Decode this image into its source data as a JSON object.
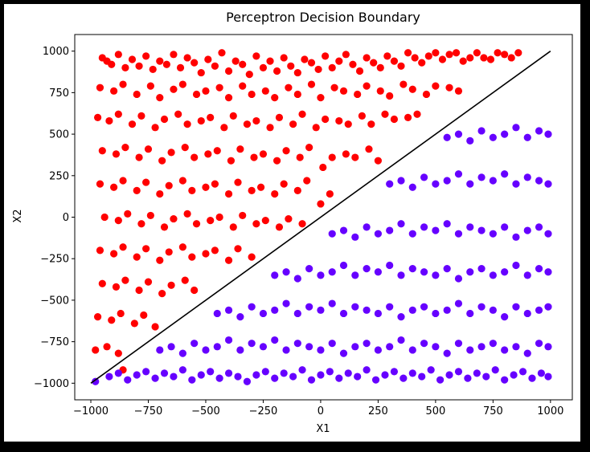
{
  "chart_data": {
    "type": "scatter",
    "title": "Perceptron Decision Boundary",
    "xlabel": "X1",
    "ylabel": "X2",
    "xlim": [
      -1070,
      1095
    ],
    "ylim": [
      -1100,
      1100
    ],
    "xticks": [
      -1000,
      -750,
      -500,
      -250,
      0,
      250,
      500,
      750,
      1000
    ],
    "yticks": [
      -1000,
      -750,
      -500,
      -250,
      0,
      250,
      500,
      750,
      1000
    ],
    "grid": false,
    "legend": "none",
    "colors": {
      "class_above": "#ff0000",
      "class_below": "#6600ff",
      "boundary": "#000000"
    },
    "boundary_line": {
      "x": [
        -1000,
        1000
      ],
      "y": [
        -1000,
        1000
      ]
    },
    "series": [
      {
        "x": [
          -950,
          -930,
          -910,
          -880,
          -850,
          -820,
          -790,
          -760,
          -730,
          -700,
          -670,
          -640,
          -610,
          -580,
          -550,
          -520,
          -490,
          -460,
          -430,
          -400,
          -370,
          -340,
          -310,
          -280,
          -250,
          -220,
          -190,
          -160,
          -130,
          -100,
          -70,
          -40,
          -10,
          20,
          50,
          80,
          110,
          140,
          170,
          200,
          230,
          260,
          290,
          320,
          350,
          380,
          410,
          440,
          470,
          500,
          530,
          560,
          590,
          620,
          650,
          680,
          710,
          740,
          770,
          800,
          830,
          860,
          -960,
          -900,
          -860,
          -800,
          -740,
          -700,
          -640,
          -600,
          -540,
          -500,
          -440,
          -400,
          -340,
          -300,
          -240,
          -200,
          -140,
          -100,
          -40,
          0,
          60,
          100,
          160,
          200,
          260,
          300,
          360,
          400,
          460,
          500,
          560,
          600,
          -970,
          -920,
          -880,
          -820,
          -780,
          -720,
          -680,
          -620,
          -580,
          -520,
          -480,
          -420,
          -380,
          -320,
          -280,
          -220,
          -180,
          -120,
          -80,
          -20,
          20,
          80,
          120,
          180,
          220,
          280,
          320,
          380,
          420,
          -950,
          -890,
          -850,
          -790,
          -750,
          -690,
          -650,
          -590,
          -550,
          -490,
          -450,
          -390,
          -350,
          -290,
          -250,
          -190,
          -150,
          -90,
          -50,
          10,
          50,
          110,
          150,
          210,
          250,
          -960,
          -900,
          -860,
          -800,
          -760,
          -700,
          -660,
          -600,
          -560,
          -500,
          -460,
          -400,
          -360,
          -300,
          -260,
          -200,
          -160,
          -100,
          -60,
          0,
          40,
          -940,
          -880,
          -840,
          -780,
          -740,
          -680,
          -640,
          -580,
          -540,
          -480,
          -440,
          -380,
          -340,
          -280,
          -240,
          -180,
          -140,
          -80,
          -960,
          -900,
          -860,
          -800,
          -760,
          -700,
          -660,
          -600,
          -560,
          -500,
          -460,
          -400,
          -360,
          -300,
          -950,
          -890,
          -850,
          -790,
          -750,
          -690,
          -650,
          -590,
          -550,
          -970,
          -910,
          -870,
          -810,
          -770,
          -720,
          -980,
          -930,
          -880,
          -860
        ],
        "y": [
          960,
          940,
          920,
          980,
          900,
          950,
          910,
          970,
          890,
          940,
          920,
          980,
          900,
          960,
          930,
          870,
          950,
          910,
          990,
          880,
          940,
          920,
          860,
          970,
          900,
          940,
          880,
          960,
          910,
          870,
          950,
          930,
          890,
          970,
          900,
          940,
          980,
          920,
          880,
          960,
          930,
          900,
          970,
          940,
          910,
          990,
          960,
          930,
          970,
          990,
          950,
          980,
          990,
          940,
          960,
          990,
          960,
          950,
          990,
          980,
          960,
          990,
          780,
          760,
          800,
          740,
          790,
          720,
          770,
          800,
          740,
          760,
          780,
          720,
          790,
          740,
          760,
          720,
          780,
          740,
          800,
          720,
          780,
          760,
          740,
          790,
          760,
          730,
          800,
          770,
          740,
          790,
          780,
          760,
          600,
          580,
          620,
          560,
          610,
          540,
          590,
          620,
          560,
          580,
          600,
          540,
          610,
          560,
          580,
          540,
          600,
          560,
          620,
          540,
          590,
          580,
          560,
          610,
          560,
          620,
          590,
          600,
          620,
          400,
          380,
          420,
          360,
          410,
          340,
          390,
          420,
          360,
          380,
          400,
          340,
          410,
          360,
          380,
          340,
          400,
          360,
          420,
          300,
          360,
          380,
          360,
          410,
          340,
          200,
          180,
          220,
          160,
          210,
          140,
          190,
          220,
          160,
          180,
          200,
          140,
          210,
          160,
          180,
          140,
          200,
          160,
          220,
          80,
          140,
          0,
          -20,
          20,
          -40,
          10,
          -60,
          -10,
          20,
          -40,
          -20,
          0,
          -60,
          10,
          -40,
          -20,
          -60,
          -10,
          -40,
          -200,
          -220,
          -180,
          -240,
          -190,
          -260,
          -210,
          -180,
          -240,
          -220,
          -200,
          -260,
          -190,
          -240,
          -400,
          -420,
          -380,
          -440,
          -390,
          -460,
          -410,
          -380,
          -440,
          -600,
          -620,
          -580,
          -640,
          -590,
          -660,
          -800,
          -780,
          -820,
          -920
        ]
      },
      {
        "x": [
          -980,
          -920,
          -880,
          -840,
          -800,
          -760,
          -720,
          -680,
          -640,
          -600,
          -560,
          -520,
          -480,
          -440,
          -400,
          -360,
          -320,
          -280,
          -240,
          -200,
          -160,
          -120,
          -80,
          -40,
          0,
          40,
          80,
          120,
          160,
          200,
          240,
          280,
          320,
          360,
          400,
          440,
          480,
          520,
          560,
          600,
          640,
          680,
          720,
          760,
          800,
          840,
          880,
          920,
          960,
          990,
          -700,
          -650,
          -600,
          -550,
          -500,
          -450,
          -400,
          -350,
          -300,
          -250,
          -200,
          -150,
          -100,
          -50,
          0,
          50,
          100,
          150,
          200,
          250,
          300,
          350,
          400,
          450,
          500,
          550,
          600,
          650,
          700,
          750,
          800,
          850,
          900,
          950,
          990,
          -450,
          -400,
          -350,
          -300,
          -250,
          -200,
          -150,
          -100,
          -50,
          0,
          50,
          100,
          150,
          200,
          250,
          300,
          350,
          400,
          450,
          500,
          550,
          600,
          650,
          700,
          750,
          800,
          850,
          900,
          950,
          990,
          -200,
          -150,
          -100,
          -50,
          0,
          50,
          100,
          150,
          200,
          250,
          300,
          350,
          400,
          450,
          500,
          550,
          600,
          650,
          700,
          750,
          800,
          850,
          900,
          950,
          990,
          50,
          100,
          150,
          200,
          250,
          300,
          350,
          400,
          450,
          500,
          550,
          600,
          650,
          700,
          750,
          800,
          850,
          900,
          950,
          990,
          300,
          350,
          400,
          450,
          500,
          550,
          600,
          650,
          700,
          750,
          800,
          850,
          900,
          950,
          990,
          550,
          600,
          650,
          700,
          750,
          800,
          850,
          900,
          950,
          990
        ],
        "y": [
          -990,
          -960,
          -940,
          -980,
          -950,
          -930,
          -970,
          -940,
          -960,
          -920,
          -980,
          -950,
          -930,
          -970,
          -940,
          -960,
          -990,
          -950,
          -930,
          -970,
          -940,
          -960,
          -920,
          -980,
          -950,
          -930,
          -970,
          -940,
          -960,
          -920,
          -980,
          -950,
          -930,
          -970,
          -940,
          -960,
          -920,
          -980,
          -950,
          -930,
          -970,
          -940,
          -960,
          -920,
          -980,
          -950,
          -930,
          -970,
          -940,
          -960,
          -800,
          -780,
          -820,
          -760,
          -800,
          -780,
          -740,
          -800,
          -760,
          -780,
          -740,
          -800,
          -760,
          -780,
          -800,
          -760,
          -820,
          -780,
          -760,
          -800,
          -780,
          -740,
          -800,
          -760,
          -780,
          -820,
          -760,
          -800,
          -780,
          -760,
          -800,
          -780,
          -820,
          -760,
          -780,
          -580,
          -560,
          -600,
          -540,
          -580,
          -560,
          -520,
          -580,
          -540,
          -560,
          -520,
          -580,
          -540,
          -560,
          -580,
          -540,
          -600,
          -560,
          -540,
          -580,
          -560,
          -520,
          -580,
          -540,
          -560,
          -600,
          -540,
          -580,
          -560,
          -540,
          -350,
          -330,
          -370,
          -310,
          -350,
          -330,
          -290,
          -350,
          -310,
          -330,
          -290,
          -350,
          -310,
          -330,
          -350,
          -310,
          -370,
          -330,
          -310,
          -350,
          -330,
          -290,
          -350,
          -310,
          -330,
          -100,
          -80,
          -120,
          -60,
          -100,
          -80,
          -40,
          -100,
          -60,
          -80,
          -40,
          -100,
          -60,
          -80,
          -100,
          -60,
          -120,
          -80,
          -60,
          -100,
          200,
          220,
          180,
          240,
          200,
          220,
          260,
          200,
          240,
          220,
          260,
          200,
          240,
          220,
          200,
          480,
          500,
          460,
          520,
          480,
          500,
          540,
          480,
          520,
          500
        ]
      }
    ]
  }
}
